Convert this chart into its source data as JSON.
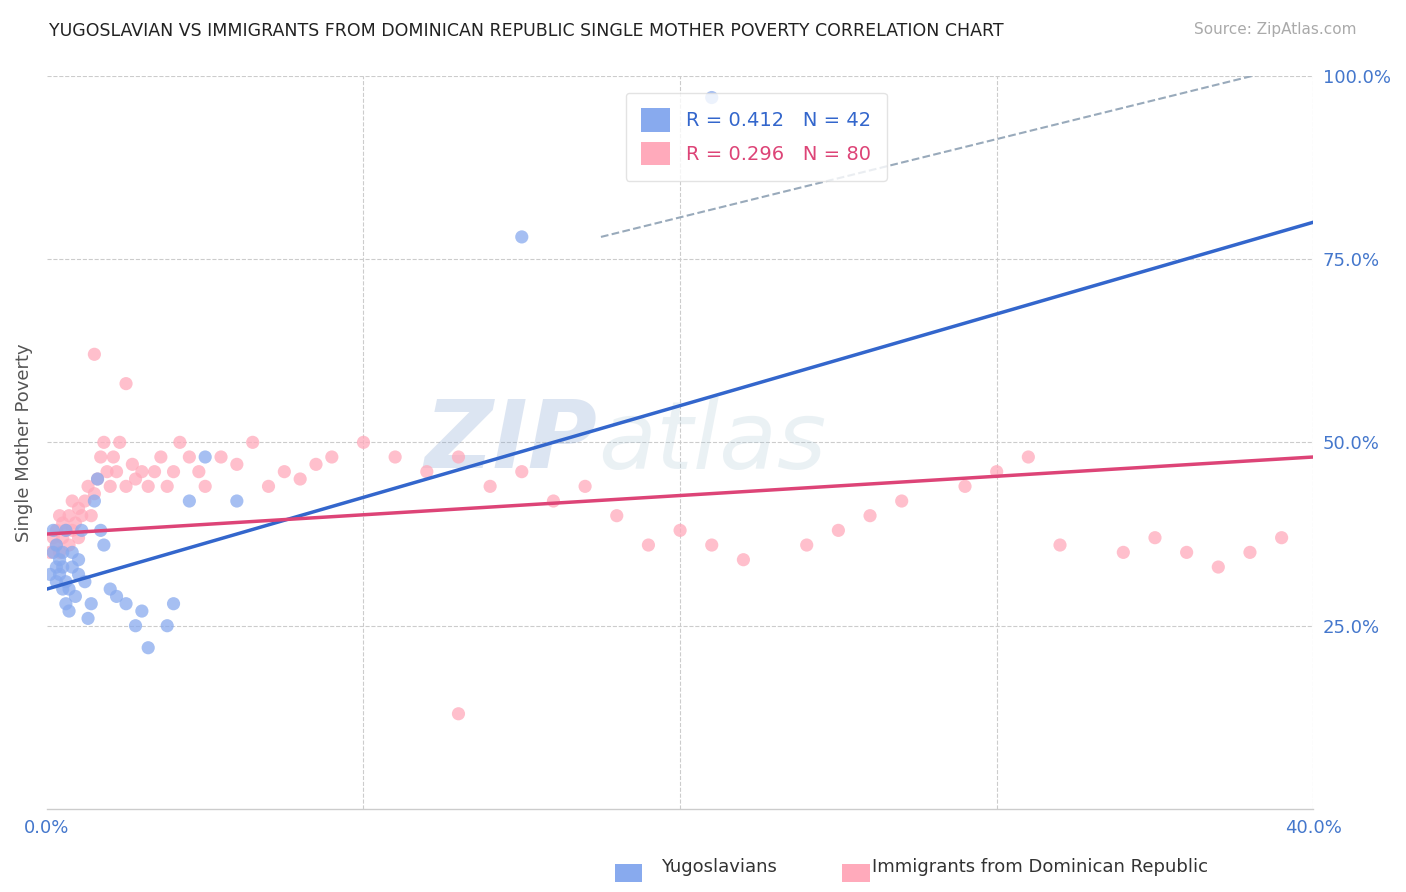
{
  "title": "YUGOSLAVIAN VS IMMIGRANTS FROM DOMINICAN REPUBLIC SINGLE MOTHER POVERTY CORRELATION CHART",
  "source": "Source: ZipAtlas.com",
  "ylabel": "Single Mother Poverty",
  "xlim": [
    0.0,
    0.4
  ],
  "ylim": [
    0.0,
    1.0
  ],
  "xticks": [
    0.0,
    0.1,
    0.2,
    0.3,
    0.4
  ],
  "xticklabels": [
    "0.0%",
    "",
    "",
    "",
    "40.0%"
  ],
  "yticks_right": [
    1.0,
    0.75,
    0.5,
    0.25
  ],
  "yticklabels_right": [
    "100.0%",
    "75.0%",
    "50.0%",
    "25.0%"
  ],
  "grid_color": "#cccccc",
  "background_color": "#ffffff",
  "blue_color": "#88aaee",
  "pink_color": "#ffaabb",
  "blue_line_color": "#3366cc",
  "pink_line_color": "#dd4477",
  "dashed_line_color": "#99aabb",
  "R_blue": 0.412,
  "N_blue": 42,
  "R_pink": 0.296,
  "N_pink": 80,
  "bottom_legend_blue": "Yugoslavians",
  "bottom_legend_pink": "Immigrants from Dominican Republic",
  "watermark": "ZIPatlas",
  "blue_line_x0": 0.0,
  "blue_line_y0": 0.3,
  "blue_line_x1": 0.4,
  "blue_line_y1": 0.8,
  "pink_line_x0": 0.0,
  "pink_line_y0": 0.375,
  "pink_line_x1": 0.4,
  "pink_line_y1": 0.48,
  "dash_line_x0": 0.175,
  "dash_line_y0": 0.78,
  "dash_line_x1": 0.4,
  "dash_line_y1": 1.02,
  "blue_scatter_x": [
    0.001,
    0.002,
    0.002,
    0.003,
    0.003,
    0.003,
    0.004,
    0.004,
    0.005,
    0.005,
    0.005,
    0.006,
    0.006,
    0.006,
    0.007,
    0.007,
    0.008,
    0.008,
    0.009,
    0.01,
    0.01,
    0.011,
    0.012,
    0.013,
    0.014,
    0.015,
    0.016,
    0.017,
    0.018,
    0.02,
    0.022,
    0.025,
    0.028,
    0.03,
    0.032,
    0.038,
    0.04,
    0.045,
    0.05,
    0.06,
    0.15,
    0.21
  ],
  "blue_scatter_y": [
    0.32,
    0.35,
    0.38,
    0.31,
    0.33,
    0.36,
    0.32,
    0.34,
    0.3,
    0.33,
    0.35,
    0.28,
    0.31,
    0.38,
    0.27,
    0.3,
    0.33,
    0.35,
    0.29,
    0.32,
    0.34,
    0.38,
    0.31,
    0.26,
    0.28,
    0.42,
    0.45,
    0.38,
    0.36,
    0.3,
    0.29,
    0.28,
    0.25,
    0.27,
    0.22,
    0.25,
    0.28,
    0.42,
    0.48,
    0.42,
    0.78,
    0.97
  ],
  "pink_scatter_x": [
    0.001,
    0.002,
    0.003,
    0.003,
    0.004,
    0.004,
    0.005,
    0.005,
    0.006,
    0.007,
    0.007,
    0.008,
    0.008,
    0.009,
    0.01,
    0.01,
    0.011,
    0.012,
    0.013,
    0.014,
    0.015,
    0.016,
    0.017,
    0.018,
    0.019,
    0.02,
    0.021,
    0.022,
    0.023,
    0.025,
    0.027,
    0.028,
    0.03,
    0.032,
    0.034,
    0.036,
    0.038,
    0.04,
    0.042,
    0.045,
    0.048,
    0.05,
    0.055,
    0.06,
    0.065,
    0.07,
    0.075,
    0.08,
    0.085,
    0.09,
    0.1,
    0.11,
    0.12,
    0.13,
    0.14,
    0.15,
    0.16,
    0.17,
    0.18,
    0.19,
    0.2,
    0.21,
    0.22,
    0.24,
    0.25,
    0.26,
    0.27,
    0.29,
    0.3,
    0.31,
    0.32,
    0.34,
    0.35,
    0.36,
    0.37,
    0.38,
    0.39,
    0.015,
    0.025,
    0.13
  ],
  "pink_scatter_y": [
    0.35,
    0.37,
    0.36,
    0.38,
    0.35,
    0.4,
    0.37,
    0.39,
    0.38,
    0.36,
    0.4,
    0.38,
    0.42,
    0.39,
    0.37,
    0.41,
    0.4,
    0.42,
    0.44,
    0.4,
    0.43,
    0.45,
    0.48,
    0.5,
    0.46,
    0.44,
    0.48,
    0.46,
    0.5,
    0.44,
    0.47,
    0.45,
    0.46,
    0.44,
    0.46,
    0.48,
    0.44,
    0.46,
    0.5,
    0.48,
    0.46,
    0.44,
    0.48,
    0.47,
    0.5,
    0.44,
    0.46,
    0.45,
    0.47,
    0.48,
    0.5,
    0.48,
    0.46,
    0.48,
    0.44,
    0.46,
    0.42,
    0.44,
    0.4,
    0.36,
    0.38,
    0.36,
    0.34,
    0.36,
    0.38,
    0.4,
    0.42,
    0.44,
    0.46,
    0.48,
    0.36,
    0.35,
    0.37,
    0.35,
    0.33,
    0.35,
    0.37,
    0.62,
    0.58,
    0.13
  ]
}
